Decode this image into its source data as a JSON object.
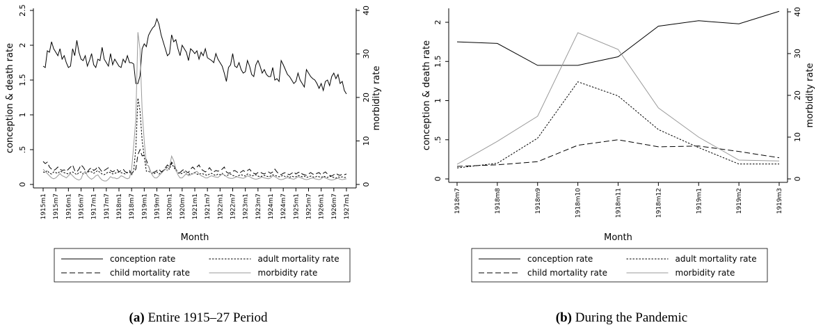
{
  "chart_data": [
    {
      "type": "line",
      "caption_label": "(a)",
      "caption": "Entire 1915–27 Period",
      "x_label": "Month",
      "y_label": "conception & death rate",
      "y2_label": "morbidity rate",
      "categories": [
        "1915m1",
        null,
        null,
        null,
        null,
        null,
        "1915m7",
        null,
        null,
        null,
        null,
        null,
        "1916m1",
        null,
        null,
        null,
        null,
        null,
        "1916m7",
        null,
        null,
        null,
        null,
        null,
        "1917m1",
        null,
        null,
        null,
        null,
        null,
        "1917m7",
        null,
        null,
        null,
        null,
        null,
        "1918m1",
        null,
        null,
        null,
        null,
        null,
        "1918m7",
        null,
        null,
        null,
        null,
        null,
        "1919m1",
        null,
        null,
        null,
        null,
        null,
        "1919m7",
        null,
        null,
        null,
        null,
        null,
        "1920m1",
        null,
        null,
        null,
        null,
        null,
        "1920m7",
        null,
        null,
        null,
        null,
        null,
        "1921m1",
        null,
        null,
        null,
        null,
        null,
        "1921m7",
        null,
        null,
        null,
        null,
        null,
        "1922m1",
        null,
        null,
        null,
        null,
        null,
        "1922m7",
        null,
        null,
        null,
        null,
        null,
        "1923m1",
        null,
        null,
        null,
        null,
        null,
        "1923m7",
        null,
        null,
        null,
        null,
        null,
        "1924m1",
        null,
        null,
        null,
        null,
        null,
        "1924m7",
        null,
        null,
        null,
        null,
        null,
        "1925m1",
        null,
        null,
        null,
        null,
        null,
        "1925m7",
        null,
        null,
        null,
        null,
        null,
        "1926m1",
        null,
        null,
        null,
        null,
        null,
        "1926m7",
        null,
        null,
        null,
        null,
        null,
        "1927m1"
      ],
      "ylim": [
        -0.05,
        2.53
      ],
      "yticks": [
        0,
        {
          "value": 0.5,
          "label": ".5"
        },
        1,
        1.5,
        2,
        2.5
      ],
      "y2lim": [
        -0.8,
        40.48
      ],
      "y2ticks": [
        0,
        10,
        20,
        30,
        40
      ],
      "series": [
        {
          "name": "conception rate",
          "color": "#000000",
          "dash": "solid",
          "values": [
            1.7,
            1.68,
            1.92,
            1.9,
            2.05,
            1.95,
            1.9,
            1.85,
            1.95,
            1.8,
            1.85,
            1.75,
            1.68,
            1.7,
            1.95,
            1.85,
            2.07,
            1.9,
            1.8,
            1.78,
            1.85,
            1.7,
            1.78,
            1.88,
            1.72,
            1.68,
            1.8,
            1.78,
            1.97,
            1.8,
            1.75,
            1.7,
            1.88,
            1.72,
            1.8,
            1.75,
            1.7,
            1.68,
            1.8,
            1.75,
            1.85,
            1.75,
            1.75,
            1.73,
            1.45,
            1.45,
            1.56,
            1.95,
            2.02,
            1.98,
            2.14,
            2.2,
            2.25,
            2.28,
            2.38,
            2.3,
            2.15,
            2.05,
            1.95,
            1.85,
            1.88,
            2.15,
            2.05,
            2.08,
            1.95,
            1.85,
            2.0,
            1.95,
            1.9,
            1.78,
            1.95,
            1.92,
            1.88,
            1.92,
            1.8,
            1.9,
            1.85,
            1.95,
            1.82,
            1.8,
            1.78,
            1.75,
            1.88,
            1.8,
            1.75,
            1.7,
            1.6,
            1.48,
            1.68,
            1.72,
            1.88,
            1.7,
            1.68,
            1.75,
            1.65,
            1.6,
            1.62,
            1.78,
            1.7,
            1.58,
            1.55,
            1.72,
            1.78,
            1.7,
            1.6,
            1.65,
            1.58,
            1.55,
            1.55,
            1.68,
            1.5,
            1.52,
            1.48,
            1.78,
            1.72,
            1.65,
            1.58,
            1.55,
            1.5,
            1.45,
            1.48,
            1.6,
            1.5,
            1.45,
            1.4,
            1.65,
            1.6,
            1.55,
            1.52,
            1.5,
            1.45,
            1.38,
            1.45,
            1.35,
            1.48,
            1.5,
            1.42,
            1.55,
            1.6,
            1.52,
            1.58,
            1.45,
            1.48,
            1.35,
            1.3
          ]
        },
        {
          "name": "adult mortality rate",
          "color": "#000000",
          "dash": "dot",
          "values": [
            0.18,
            0.17,
            0.2,
            0.16,
            0.15,
            0.18,
            0.17,
            0.16,
            0.19,
            0.18,
            0.17,
            0.16,
            0.15,
            0.17,
            0.18,
            0.16,
            0.14,
            0.17,
            0.18,
            0.15,
            0.16,
            0.17,
            0.19,
            0.18,
            0.16,
            0.18,
            0.2,
            0.17,
            0.15,
            0.14,
            0.16,
            0.18,
            0.17,
            0.15,
            0.16,
            0.17,
            0.18,
            0.17,
            0.16,
            0.15,
            0.17,
            0.18,
            0.14,
            0.2,
            0.52,
            1.24,
            1.06,
            0.63,
            0.4,
            0.19,
            0.19,
            0.17,
            0.15,
            0.16,
            0.18,
            0.15,
            0.17,
            0.2,
            0.22,
            0.25,
            0.22,
            0.3,
            0.25,
            0.2,
            0.17,
            0.15,
            0.16,
            0.18,
            0.15,
            0.14,
            0.16,
            0.15,
            0.17,
            0.15,
            0.14,
            0.16,
            0.15,
            0.14,
            0.13,
            0.15,
            0.16,
            0.14,
            0.13,
            0.15,
            0.14,
            0.16,
            0.13,
            0.12,
            0.14,
            0.15,
            0.13,
            0.12,
            0.11,
            0.13,
            0.14,
            0.13,
            0.12,
            0.15,
            0.14,
            0.12,
            0.13,
            0.14,
            0.12,
            0.11,
            0.12,
            0.13,
            0.12,
            0.11,
            0.12,
            0.14,
            0.13,
            0.12,
            0.11,
            0.12,
            0.13,
            0.11,
            0.12,
            0.1,
            0.12,
            0.11,
            0.11,
            0.13,
            0.12,
            0.11,
            0.12,
            0.1,
            0.11,
            0.12,
            0.11,
            0.1,
            0.12,
            0.11,
            0.1,
            0.12,
            0.11,
            0.1,
            0.12,
            0.11,
            0.1,
            0.09,
            0.11,
            0.1,
            0.11,
            0.1,
            0.1
          ]
        },
        {
          "name": "child mortality rate",
          "color": "#000000",
          "dash": "dash",
          "values": [
            0.33,
            0.3,
            0.32,
            0.25,
            0.22,
            0.2,
            0.22,
            0.25,
            0.22,
            0.2,
            0.21,
            0.19,
            0.22,
            0.25,
            0.28,
            0.2,
            0.18,
            0.22,
            0.28,
            0.25,
            0.2,
            0.18,
            0.22,
            0.24,
            0.2,
            0.22,
            0.26,
            0.22,
            0.18,
            0.2,
            0.22,
            0.24,
            0.2,
            0.18,
            0.2,
            0.22,
            0.18,
            0.2,
            0.22,
            0.18,
            0.17,
            0.2,
            0.16,
            0.18,
            0.22,
            0.43,
            0.5,
            0.41,
            0.42,
            0.35,
            0.27,
            0.18,
            0.17,
            0.18,
            0.2,
            0.22,
            0.18,
            0.2,
            0.24,
            0.28,
            0.25,
            0.32,
            0.28,
            0.22,
            0.18,
            0.17,
            0.2,
            0.22,
            0.18,
            0.17,
            0.22,
            0.25,
            0.22,
            0.25,
            0.28,
            0.22,
            0.2,
            0.18,
            0.2,
            0.24,
            0.2,
            0.18,
            0.2,
            0.19,
            0.2,
            0.22,
            0.25,
            0.18,
            0.16,
            0.17,
            0.19,
            0.2,
            0.18,
            0.16,
            0.18,
            0.2,
            0.18,
            0.2,
            0.22,
            0.18,
            0.16,
            0.15,
            0.17,
            0.18,
            0.16,
            0.15,
            0.17,
            0.18,
            0.16,
            0.18,
            0.22,
            0.18,
            0.15,
            0.14,
            0.16,
            0.17,
            0.15,
            0.14,
            0.16,
            0.18,
            0.15,
            0.17,
            0.18,
            0.15,
            0.14,
            0.13,
            0.15,
            0.17,
            0.15,
            0.14,
            0.16,
            0.17,
            0.14,
            0.16,
            0.18,
            0.15,
            0.13,
            0.12,
            0.14,
            0.16,
            0.14,
            0.13,
            0.15,
            0.14,
            0.15
          ]
        },
        {
          "name": "morbidity rate",
          "color": "#999999",
          "dash": "solid",
          "axis": "y2",
          "values": [
            3.5,
            3,
            2.5,
            2,
            1.5,
            1.3,
            1.5,
            2,
            2.5,
            2,
            1.8,
            1.5,
            2,
            2.5,
            2,
            1.5,
            1.2,
            1,
            1.3,
            2.5,
            3,
            2,
            1.5,
            1.2,
            1.5,
            2,
            2.2,
            1.5,
            1,
            0.8,
            0.8,
            1.2,
            1.8,
            1.5,
            1.5,
            1.3,
            1.5,
            2,
            1.8,
            1.5,
            1.3,
            1.5,
            3.5,
            9,
            15,
            35,
            31,
            17,
            10,
            4.5,
            4.3,
            3,
            2,
            1.5,
            1.5,
            2,
            2.5,
            3,
            3.5,
            3.2,
            4,
            6.5,
            5.5,
            3.5,
            2.2,
            1.5,
            1.5,
            2,
            2.5,
            2,
            2.2,
            2.5,
            2.8,
            3,
            2.5,
            2,
            1.8,
            1.5,
            1.5,
            1.8,
            2,
            1.8,
            1.7,
            1.6,
            2,
            2.4,
            2.2,
            1.8,
            1.5,
            1.4,
            1.4,
            1.6,
            1.8,
            1.6,
            1.5,
            1.4,
            1.6,
            2,
            1.8,
            1.5,
            1.3,
            1.2,
            1.3,
            1.5,
            1.7,
            1.5,
            1.4,
            1.3,
            1.5,
            2,
            1.8,
            1.5,
            1.2,
            1.1,
            1.2,
            1.4,
            1.6,
            1.4,
            1.3,
            1.2,
            1.4,
            1.8,
            1.6,
            1.4,
            1.2,
            1.1,
            1.2,
            1.4,
            1.5,
            1.3,
            1.2,
            1.1,
            1.3,
            1.7,
            1.5,
            1.3,
            1.1,
            1.0,
            1.1,
            1.3,
            1.4,
            1.2,
            1.1,
            1.2,
            1.3
          ]
        }
      ]
    },
    {
      "type": "line",
      "caption_label": "(b)",
      "caption": "During the Pandemic",
      "x_label": "Month",
      "y_label": "conception & death rate",
      "y2_label": "morbidity rate",
      "categories": [
        "1918m7",
        "1918m8",
        "1918m9",
        "1918m10",
        "1918m11",
        "1918m12",
        "1919m1",
        "1919m2",
        "1919m3"
      ],
      "ylim": [
        -0.044,
        2.178
      ],
      "yticks": [
        0,
        {
          "value": 0.5,
          "label": ".5"
        },
        1,
        1.5,
        2
      ],
      "y2lim": [
        -0.83,
        40.83
      ],
      "y2ticks": [
        0,
        10,
        20,
        30,
        40
      ],
      "series": [
        {
          "name": "conception rate",
          "color": "#000000",
          "dash": "solid",
          "values": [
            1.75,
            1.73,
            1.45,
            1.45,
            1.56,
            1.95,
            2.02,
            1.98,
            2.14
          ]
        },
        {
          "name": "adult mortality rate",
          "color": "#000000",
          "dash": "dot",
          "values": [
            0.14,
            0.2,
            0.52,
            1.24,
            1.06,
            0.63,
            0.4,
            0.19,
            0.19
          ]
        },
        {
          "name": "child mortality rate",
          "color": "#000000",
          "dash": "dash",
          "values": [
            0.16,
            0.18,
            0.22,
            0.43,
            0.5,
            0.41,
            0.42,
            0.35,
            0.27
          ]
        },
        {
          "name": "morbidity rate",
          "color": "#999999",
          "dash": "solid",
          "axis": "y2",
          "values": [
            3.5,
            9,
            15,
            35,
            31,
            17,
            10,
            4.5,
            4.3
          ]
        }
      ]
    }
  ]
}
